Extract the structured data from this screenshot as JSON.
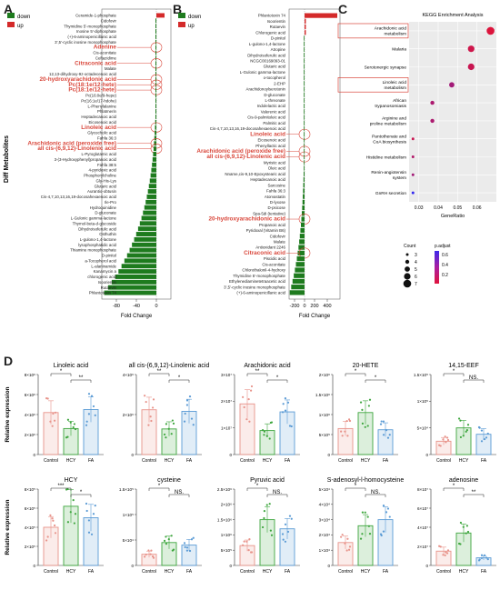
{
  "panels": {
    "A": "A",
    "B": "B",
    "C": "C",
    "D": "D"
  },
  "legend_down": "down",
  "legend_up": "up",
  "colors": {
    "down": "#1e7b1e",
    "up": "#d42a2a",
    "highlight": "#d9473b"
  },
  "panel_a": {
    "ylabel": "Diff Metabolites",
    "xlabel": "Fold Change",
    "ticks": [
      "-80",
      "-40",
      "0"
    ],
    "up": [
      "Ceramide-1-phosphate"
    ],
    "labels": [
      "Ceramide-1-phosphate",
      "Cidofovir",
      "Thymidine 5'-monophosphate",
      "Inosine 5'-diphosphate",
      "(+)-6-aminopenicillanic acid",
      "3',5'-cyclic inosine monophosphate",
      "Adenine",
      "Cis-aconitate",
      "Ceftazidime",
      "Citraconic acid",
      "Malate",
      "12,13-dihydroxy-9z-octadecenoic acid",
      "20-hydroxyarachidonic acid",
      "Pc(18:1e/12-hete)",
      "Pc(18:1e/12-hete)",
      "Pc(16:0e/9-hepe)",
      "Pc(16:1e/17-hdohe)",
      "L-Phenylalanine",
      "Phlatmerin",
      "Heptadecanoic acid",
      "Eicosenoic acid",
      "Linoleic acid",
      "Glycocholic acid",
      "Fahfa 36:3",
      "Arachidonic acid (peroxide free)",
      "all cis-(6,9,12)-Linolenic acid",
      "L-Pyroglutamic acid",
      "3-(3-Hydroxyphenyl)propanoic acid",
      "Fahfa 38:5",
      "4-pyridoxic acid",
      "Phosphorylcholine",
      "Gly-His-Lys",
      "Glutaric acid",
      "Aurantio-obtusin",
      "Cis-4,7,10,13,16,19-docosahexaenoic acid",
      "Ile-Pro",
      "Hydroquinidine",
      "D-gluconate",
      "L-Gulonic gamma-lactone",
      "Thymol-beta-d-glucoside",
      "Dihydroisoferulic acid",
      "Osthuthin",
      "L-gulono-1,4-lactone",
      "lysophosphatidic acid",
      "Thiamine monophosphate",
      "D-pinitol",
      "a-Tocopherol acid",
      "L-alaninamide",
      "Kanamycin a",
      "chlorogenic acid",
      "Isoorientin",
      "Rutaevin",
      "Phlantotoxin 74"
    ],
    "highlighted": [
      "Adenine",
      "Citraconic acid",
      "20-hydroxyarachidonic acid",
      "Pc(18:1e/12-hete)",
      "Pc(18:1e/12-hete)",
      "Linoleic acid",
      "Arachidonic acid (peroxide free)",
      "all cis-(6,9,12)-Linolenic acid"
    ]
  },
  "panel_b": {
    "xlabel": "Fold Change",
    "ticks": [
      "-200",
      "0",
      "200",
      "400"
    ],
    "labels": [
      "Phlantotoxin 74",
      "Isoorientin",
      "Rutaevin",
      "Chlorogenic acid",
      "D-pinitol",
      "L-gulono-1,4-lactone",
      "Atropine",
      "Dihydroisoferulic acid",
      "NCGC00169093-01",
      "Glutaric acid",
      "L-Gulonic gamma-lactone",
      "o-tocopherol",
      "2-EHP",
      "Arachidonoylserotonin",
      "D-gluconate",
      "L-threonate",
      "Indolelactic acid",
      "Valerenic acid",
      "Cis-9-palmitoleic acid",
      "Palmitic acid",
      "Cis-4,7,10,13,16,19-docosahexaenoic acid",
      "Linoleic acid",
      "Eicosenoic acid",
      "Phenyllactic acid",
      "Arachidonic acid (peroxide free)",
      "all cis-(6,9,12)-Linolenic acid",
      "Myristic acid",
      "Oleic acid",
      "Nname,cis-9,10-Epoxystearic acid",
      "Heptadecanoic acid",
      "Sarcosine",
      "Fahfa 36:3",
      "Atorvastatin",
      "D-lyxose",
      "D-psicose",
      "Spa-5di (tentative)",
      "20-hydroxyarachidonic acid",
      "Propanoic acid",
      "Pyridoxal (Vitamin B6)",
      "Cidofovir",
      "Malate",
      "Antioxidant 2246",
      "Citraconic acid",
      "Piscidic acid",
      "Cis-aconitate",
      "Chlorothalonil-4-hydroxy",
      "Thymidine 5'-monophosphate",
      "Ethylenediaminetetraacetic acid",
      "3',5'-cyclic inosine monophosphate",
      "(+)-6-aminopenicillanic acid"
    ],
    "highlighted": [
      "Linoleic acid",
      "Arachidonic acid (peroxide free)",
      "all cis-(6,9,12)-Linolenic acid",
      "20-hydroxyarachidonic acid",
      "Citraconic acid"
    ]
  },
  "chart_data": [
    {
      "type": "scatter",
      "title": "KEGG Enrichment Analysis",
      "xlabel": "GeneRatio",
      "ylabel": "",
      "xlim": [
        0.025,
        0.07
      ],
      "xticks": [
        "0.03",
        "0.04",
        "0.05",
        "0.06"
      ],
      "categories": [
        "Arachidonic acid metabolism",
        "Malaria",
        "Serotonergic synapse",
        "Linoleic acid metabolism",
        "African trypanosomiasis",
        "Arginine and proline metabolism",
        "Pantothenate and CoA biosynthesis",
        "Histidine metabolism",
        "Renin-angiotensin system",
        "GnRH secretion"
      ],
      "generatio": [
        0.067,
        0.057,
        0.057,
        0.047,
        0.037,
        0.037,
        0.027,
        0.027,
        0.027,
        0.027
      ],
      "count": [
        7,
        6,
        6,
        5,
        4,
        4,
        3,
        3,
        3,
        3
      ],
      "p_adjust": [
        0.05,
        0.1,
        0.12,
        0.25,
        0.22,
        0.22,
        0.12,
        0.2,
        0.25,
        0.65
      ],
      "highlighted": [
        "Arachidonic acid metabolism",
        "Linoleic acid metabolism"
      ],
      "legend": {
        "count_title": "Count",
        "count_values": [
          "3",
          "4",
          "5",
          "6",
          "7"
        ],
        "padj_title": "p.adjust",
        "padj_ticks": [
          "0.6",
          "0.4",
          "0.2"
        ]
      }
    },
    {
      "type": "bar",
      "ylabel": "Relative expression",
      "groups": [
        "Control",
        "HCY",
        "FA"
      ],
      "colors": [
        "#e8938a",
        "#3ea63e",
        "#5b9bd5"
      ],
      "panels": [
        {
          "title": "Linoleic acid",
          "values": [
            4200000.0,
            2600000.0,
            4500000.0
          ],
          "ylim": [
            0,
            8000000.0
          ],
          "yticks": [
            "0",
            "2×10⁶",
            "4×10⁶",
            "6×10⁶",
            "8×10⁶"
          ],
          "sig": [
            [
              "*",
              0,
              1
            ],
            [
              "**",
              1,
              2
            ]
          ]
        },
        {
          "title": "all cis-(6,9,12)-Linolenic acid",
          "values": [
            2800000.0,
            1600000.0,
            2700000.0
          ],
          "ylim": [
            0,
            5000000.0
          ],
          "yticks": [
            "0",
            "2×10⁶",
            "4×10⁶"
          ],
          "sig": [
            [
              "**",
              0,
              1
            ],
            [
              "*",
              1,
              2
            ]
          ]
        },
        {
          "title": "Arachidonic acid",
          "values": [
            19000000.0,
            9000000.0,
            16000000.0
          ],
          "ylim": [
            0,
            30000000.0
          ],
          "yticks": [
            "0",
            "1×10⁷",
            "2×10⁷",
            "3×10⁷"
          ],
          "sig": [
            [
              "**",
              0,
              1
            ],
            [
              "*",
              1,
              2
            ]
          ]
        },
        {
          "title": "20-HETE",
          "values": [
            650000.0,
            1050000.0,
            620000.0
          ],
          "ylim": [
            0,
            2000000.0
          ],
          "yticks": [
            "0",
            "5×10⁵",
            "1×10⁶",
            "1.5×10⁶",
            "2×10⁶"
          ],
          "sig": [
            [
              "*",
              0,
              1
            ],
            [
              "*",
              1,
              2
            ]
          ]
        },
        {
          "title": "14,15-EEF",
          "values": [
            25000.0,
            50000.0,
            38000.0
          ],
          "ylim": [
            0,
            150000.0
          ],
          "yticks": [
            "0",
            "5×10⁴",
            "1×10⁵",
            "1.5×10⁵"
          ],
          "sig": [
            [
              "*",
              0,
              1
            ],
            [
              "NS.",
              1,
              2
            ]
          ]
        },
        {
          "title": "HCY",
          "values": [
            400000.0,
            620000.0,
            500000.0
          ],
          "ylim": [
            0,
            800000.0
          ],
          "yticks": [
            "0",
            "2×10⁵",
            "4×10⁵",
            "6×10⁵",
            "8×10⁵"
          ],
          "sig": [
            [
              "***",
              0,
              1
            ],
            [
              "*",
              1,
              2
            ]
          ]
        },
        {
          "title": "cysteine",
          "values": [
            22000.0,
            45000.0,
            40000.0
          ],
          "ylim": [
            0,
            150000.0
          ],
          "yticks": [
            "0",
            "5×10⁴",
            "1×10⁵",
            "1.5×10⁵"
          ],
          "sig": [
            [
              "*",
              0,
              1
            ],
            [
              "NS.",
              1,
              2
            ]
          ]
        },
        {
          "title": "Pyruvic acid",
          "values": [
            650000.0,
            1500000.0,
            1200000.0
          ],
          "ylim": [
            0,
            2500000.0
          ],
          "yticks": [
            "0",
            "5×10⁵",
            "1×10⁶",
            "1.5×10⁶",
            "2×10⁶",
            "2.5×10⁶"
          ],
          "sig": [
            [
              "*",
              0,
              1
            ],
            [
              "NS.",
              1,
              2
            ]
          ]
        },
        {
          "title": "S-adenosyl-l-homocysteine",
          "values": [
            15000.0,
            26000.0,
            30000.0
          ],
          "ylim": [
            0,
            50000.0
          ],
          "yticks": [
            "0",
            "1×10⁴",
            "2×10⁴",
            "3×10⁴",
            "4×10⁴",
            "5×10⁴"
          ],
          "sig": [
            [
              "*",
              0,
              1
            ],
            [
              "NS.",
              1,
              2
            ]
          ]
        },
        {
          "title": "adenosine",
          "values": [
            15000000.0,
            34000000.0,
            8000000.0
          ],
          "ylim": [
            0,
            80000000.0
          ],
          "yticks": [
            "0",
            "2×10⁷",
            "4×10⁷",
            "6×10⁷",
            "8×10⁷"
          ],
          "sig": [
            [
              "*",
              0,
              1
            ],
            [
              "**",
              1,
              2
            ]
          ]
        }
      ]
    }
  ]
}
